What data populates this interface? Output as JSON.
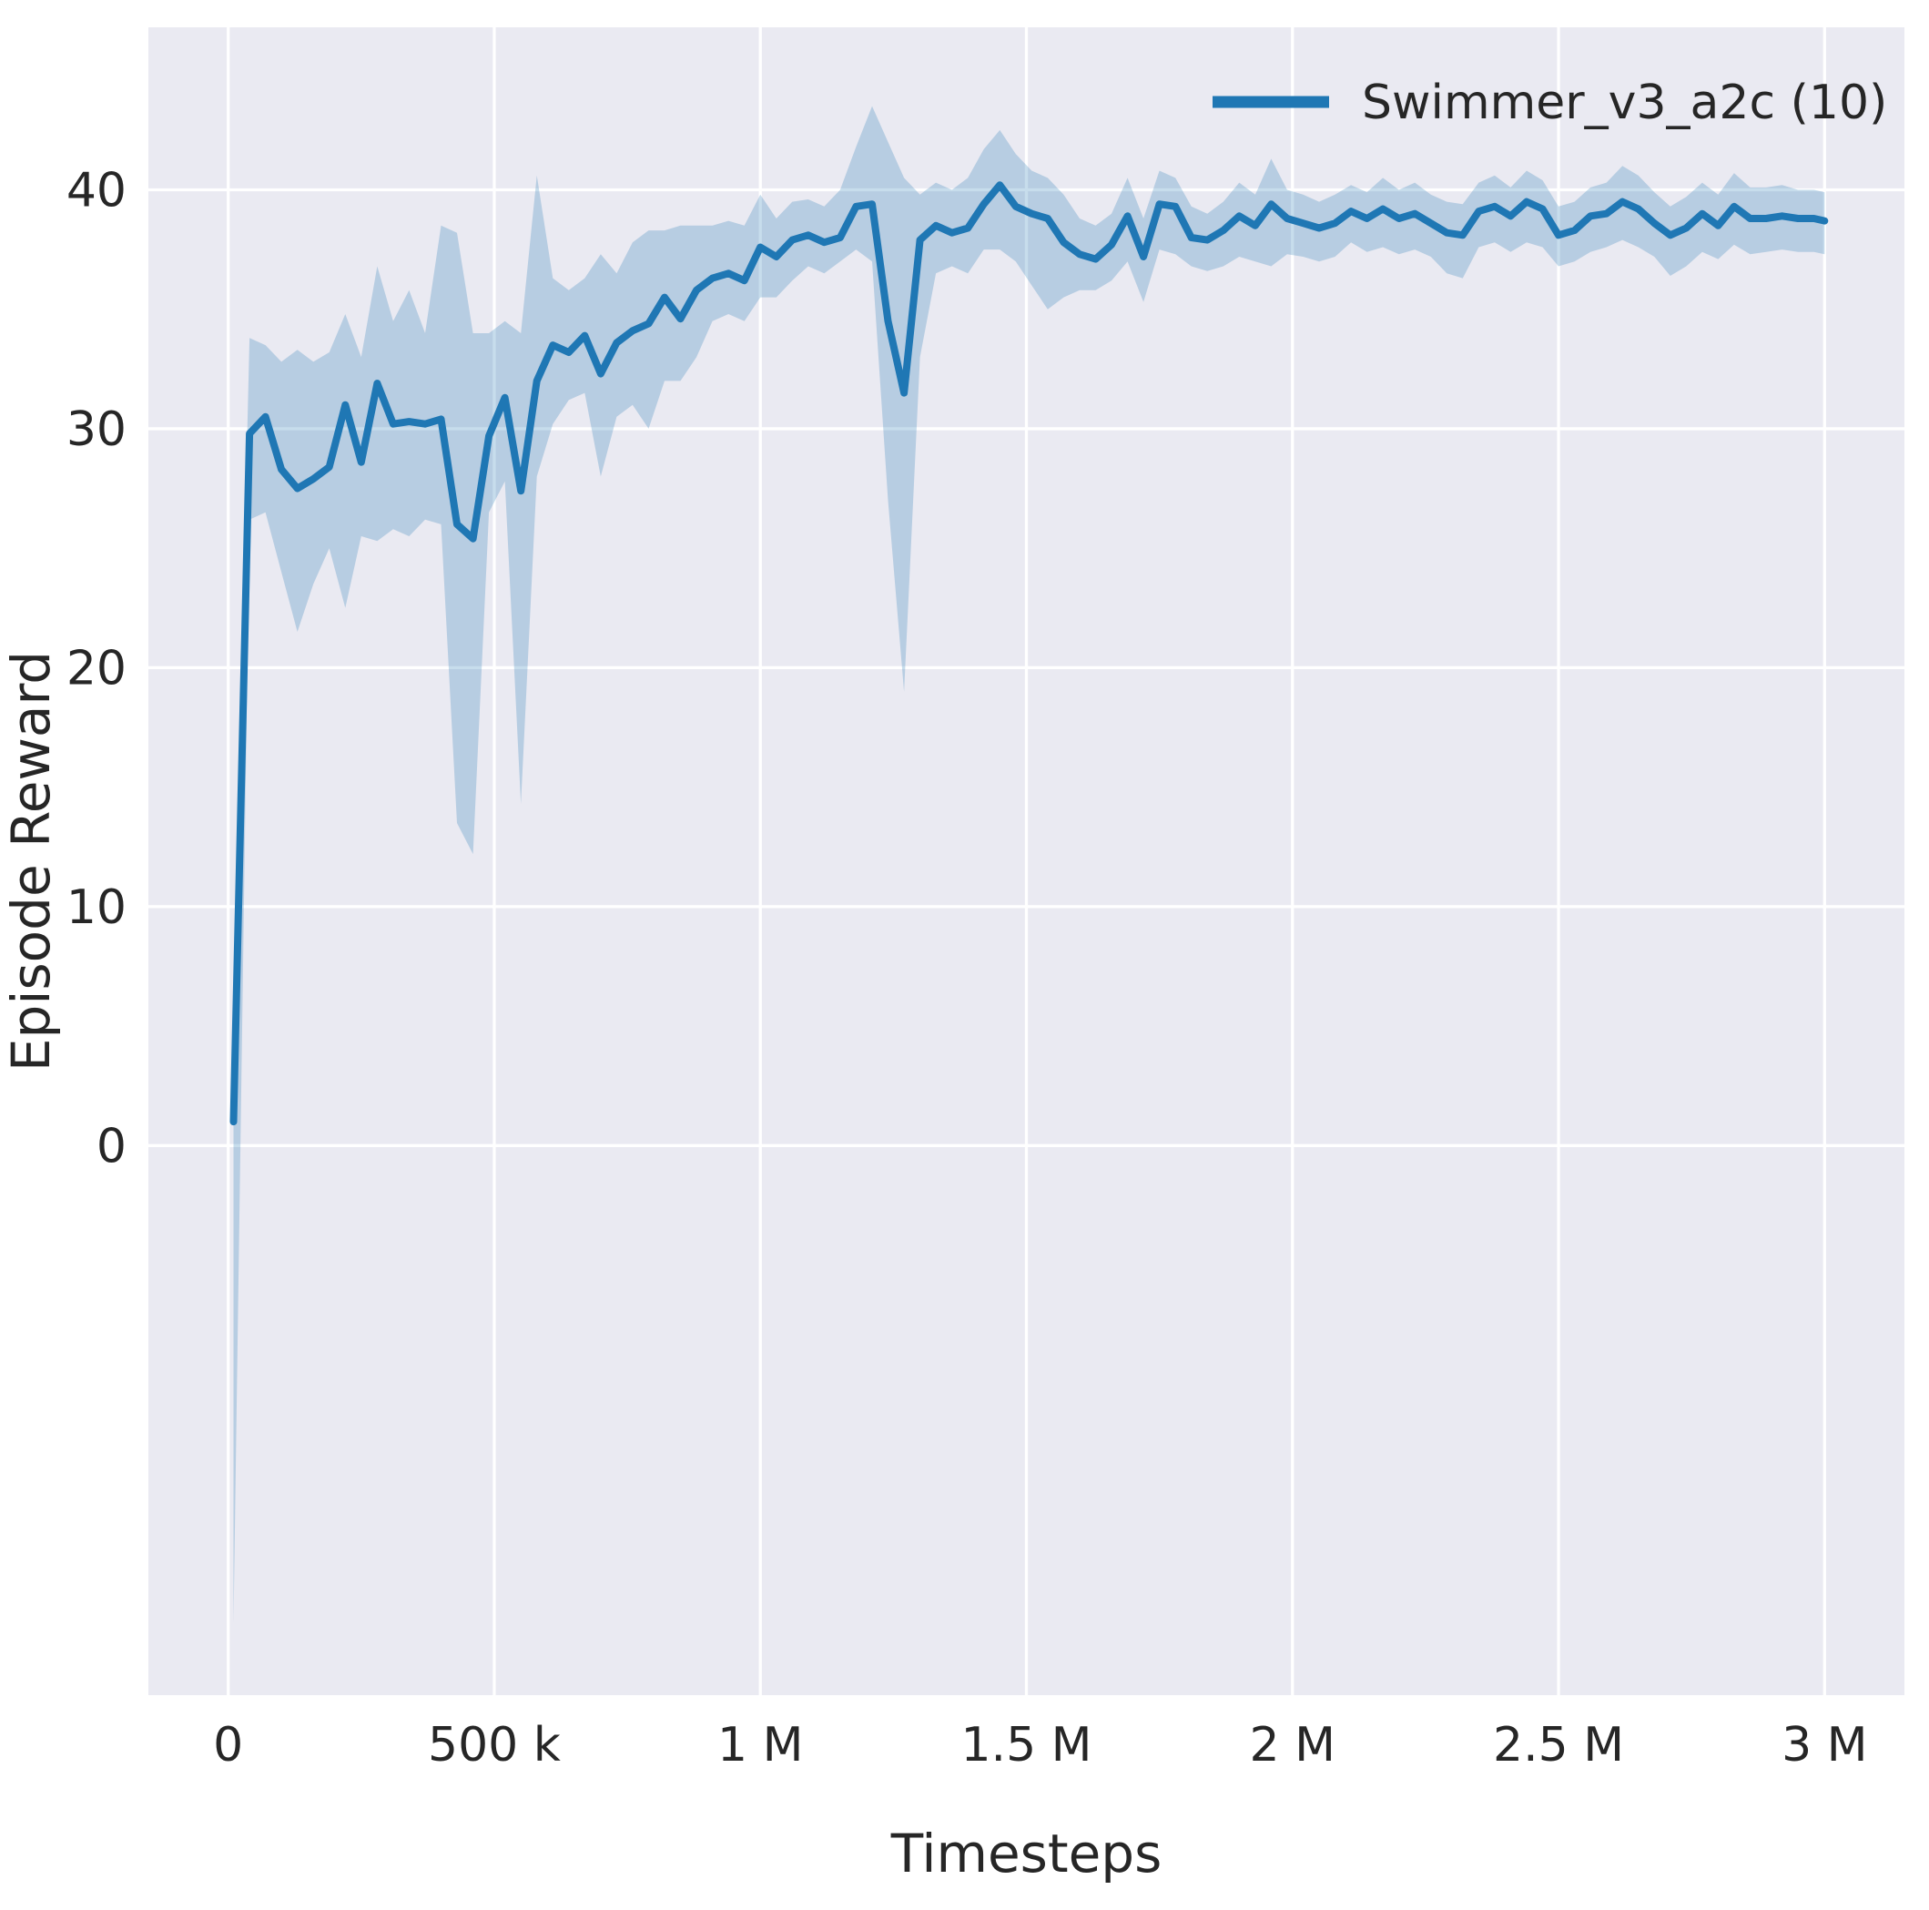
{
  "figure": {
    "background": "#ffffff",
    "plot_background": "#eaeaf2",
    "grid_color": "#ffffff",
    "text_color": "#262626"
  },
  "chart_data": {
    "type": "line",
    "title": "",
    "xlabel": "Timesteps",
    "ylabel": "Episode Reward",
    "xlim": [
      -150000,
      3150000
    ],
    "ylim": [
      -23,
      46.8
    ],
    "grid": true,
    "x_ticks": [
      0,
      500000,
      1000000,
      1500000,
      2000000,
      2500000,
      3000000
    ],
    "x_tick_labels": [
      "0",
      "500 k",
      "1 M",
      "1.5 M",
      "2 M",
      "2.5 M",
      "3 M"
    ],
    "y_ticks": [
      0,
      10,
      20,
      30,
      40
    ],
    "y_tick_labels": [
      "0",
      "10",
      "20",
      "30",
      "40"
    ],
    "legend": {
      "position": "upper right",
      "entries": [
        {
          "label": "Swimmer_v3_a2c (10)",
          "color": "#1f77b4"
        }
      ]
    },
    "series": [
      {
        "name": "Swimmer_v3_a2c (10)",
        "color": "#1f77b4",
        "band_opacity": 0.25,
        "x": [
          10000,
          40000,
          70000,
          100000,
          130000,
          160000,
          190000,
          220000,
          250000,
          280000,
          310000,
          340000,
          370000,
          400000,
          430000,
          460000,
          490000,
          520000,
          550000,
          580000,
          610000,
          640000,
          670000,
          700000,
          730000,
          760000,
          790000,
          820000,
          850000,
          880000,
          910000,
          940000,
          970000,
          1000000,
          1030000,
          1060000,
          1090000,
          1120000,
          1150000,
          1180000,
          1210000,
          1240000,
          1270000,
          1300000,
          1330000,
          1360000,
          1390000,
          1420000,
          1450000,
          1480000,
          1510000,
          1540000,
          1570000,
          1600000,
          1630000,
          1660000,
          1690000,
          1720000,
          1750000,
          1780000,
          1810000,
          1840000,
          1870000,
          1900000,
          1930000,
          1960000,
          1990000,
          2020000,
          2050000,
          2080000,
          2110000,
          2140000,
          2170000,
          2200000,
          2230000,
          2260000,
          2290000,
          2320000,
          2350000,
          2380000,
          2410000,
          2440000,
          2470000,
          2500000,
          2530000,
          2560000,
          2590000,
          2620000,
          2650000,
          2680000,
          2710000,
          2740000,
          2770000,
          2800000,
          2830000,
          2860000,
          2890000,
          2920000,
          2950000,
          2980000,
          3000000
        ],
        "mean": [
          1.0,
          29.8,
          30.5,
          28.3,
          27.5,
          27.9,
          28.4,
          31.0,
          28.6,
          31.9,
          30.2,
          30.3,
          30.2,
          30.4,
          26.0,
          25.4,
          29.7,
          31.3,
          27.4,
          32.0,
          33.5,
          33.2,
          33.9,
          32.3,
          33.6,
          34.1,
          34.4,
          35.5,
          34.6,
          35.8,
          36.3,
          36.5,
          36.2,
          37.6,
          37.2,
          37.9,
          38.1,
          37.8,
          38.0,
          39.3,
          39.4,
          34.5,
          31.5,
          37.9,
          38.5,
          38.2,
          38.4,
          39.4,
          40.2,
          39.3,
          39.0,
          38.8,
          37.8,
          37.3,
          37.1,
          37.7,
          38.9,
          37.2,
          39.4,
          39.3,
          38.0,
          37.9,
          38.3,
          38.9,
          38.5,
          39.4,
          38.8,
          38.6,
          38.4,
          38.6,
          39.1,
          38.8,
          39.2,
          38.8,
          39.0,
          38.6,
          38.2,
          38.1,
          39.1,
          39.3,
          38.9,
          39.5,
          39.2,
          38.1,
          38.3,
          38.9,
          39.0,
          39.5,
          39.2,
          38.6,
          38.1,
          38.4,
          39.0,
          38.5,
          39.3,
          38.8,
          38.8,
          38.9,
          38.8,
          38.8,
          38.7
        ],
        "lower": [
          -20.0,
          26.2,
          26.5,
          24.0,
          21.5,
          23.5,
          25.0,
          22.5,
          25.5,
          25.3,
          25.8,
          25.5,
          26.2,
          26.0,
          13.5,
          12.2,
          26.5,
          27.8,
          14.3,
          28.0,
          30.2,
          31.2,
          31.5,
          28.0,
          30.5,
          31.0,
          30.0,
          32.0,
          32.0,
          33.0,
          34.5,
          34.8,
          34.5,
          35.5,
          35.5,
          36.2,
          36.8,
          36.5,
          37.0,
          37.5,
          37.0,
          27.0,
          19.0,
          33.0,
          36.5,
          36.8,
          36.5,
          37.5,
          37.5,
          37.0,
          36.0,
          35.0,
          35.5,
          35.8,
          35.8,
          36.2,
          37.0,
          35.3,
          37.5,
          37.3,
          36.8,
          36.6,
          36.8,
          37.2,
          37.0,
          36.8,
          37.3,
          37.2,
          37.0,
          37.2,
          37.8,
          37.4,
          37.6,
          37.3,
          37.5,
          37.2,
          36.5,
          36.3,
          37.6,
          37.8,
          37.4,
          37.8,
          37.6,
          36.8,
          37.0,
          37.4,
          37.6,
          37.9,
          37.6,
          37.2,
          36.4,
          36.8,
          37.4,
          37.1,
          37.7,
          37.3,
          37.4,
          37.5,
          37.4,
          37.4,
          37.3
        ],
        "upper": [
          6.0,
          33.8,
          33.5,
          32.8,
          33.3,
          32.8,
          33.2,
          34.8,
          33.0,
          36.8,
          34.5,
          35.8,
          34.0,
          38.5,
          38.2,
          34.0,
          34.0,
          34.5,
          34.0,
          40.6,
          36.3,
          35.8,
          36.3,
          37.3,
          36.5,
          37.8,
          38.3,
          38.3,
          38.5,
          38.5,
          38.5,
          38.7,
          38.5,
          39.8,
          38.8,
          39.5,
          39.6,
          39.3,
          40.0,
          41.8,
          43.5,
          42.0,
          40.5,
          39.8,
          40.3,
          40.0,
          40.5,
          41.7,
          42.5,
          41.5,
          40.8,
          40.5,
          39.8,
          38.8,
          38.5,
          39.0,
          40.5,
          38.8,
          40.8,
          40.5,
          39.3,
          39.0,
          39.5,
          40.3,
          39.8,
          41.3,
          40.0,
          39.8,
          39.5,
          39.8,
          40.2,
          39.9,
          40.5,
          40.0,
          40.3,
          39.8,
          39.5,
          39.4,
          40.3,
          40.6,
          40.1,
          40.8,
          40.4,
          39.3,
          39.5,
          40.1,
          40.3,
          41.0,
          40.6,
          39.9,
          39.3,
          39.7,
          40.3,
          39.8,
          40.7,
          40.1,
          40.1,
          40.2,
          40.0,
          40.0,
          39.9
        ]
      }
    ]
  }
}
